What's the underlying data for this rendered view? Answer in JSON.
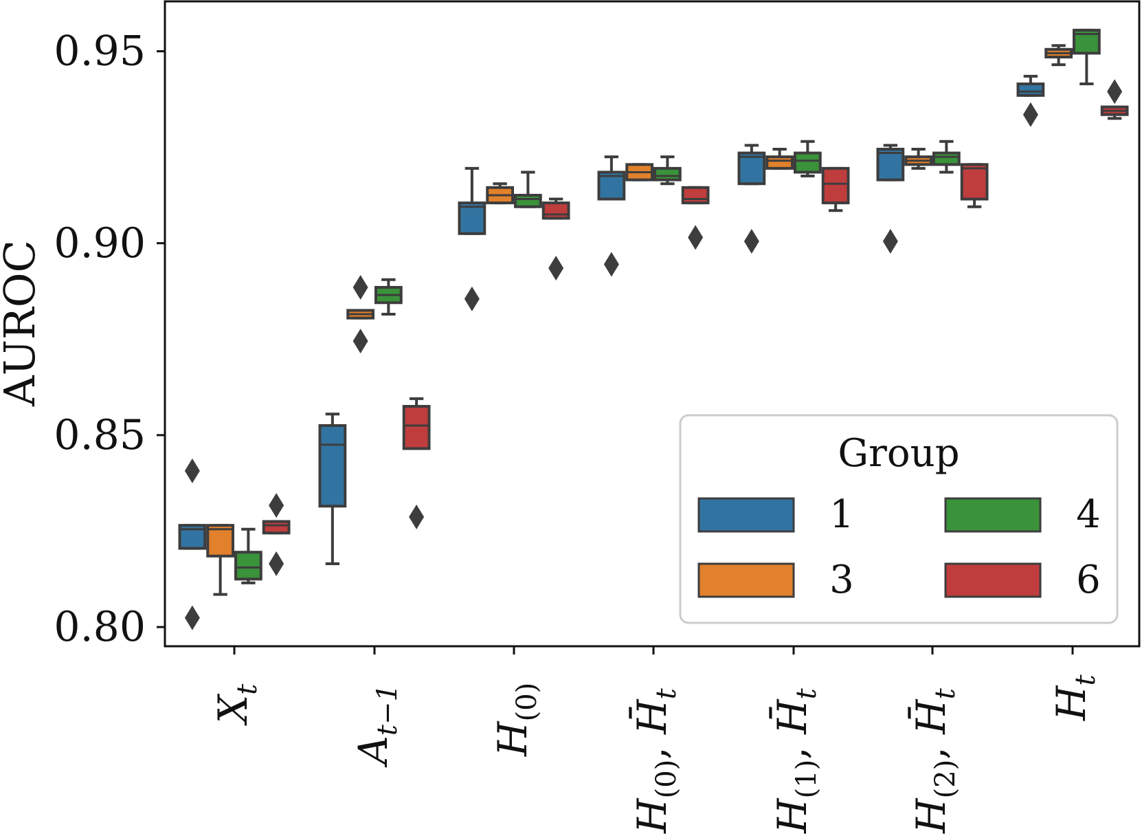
{
  "chart_data": {
    "type": "box",
    "ylabel": "AUROC",
    "ylim": [
      0.795,
      0.963
    ],
    "yticks": [
      0.8,
      0.85,
      0.9,
      0.95
    ],
    "ytick_labels": [
      "0.80",
      "0.85",
      "0.90",
      "0.95"
    ],
    "categories": [
      "X_t",
      "A_{t−1}",
      "H_(0)",
      "H_(0), H̄_t",
      "H_(1), H̄_t",
      "H_(2), H̄_t",
      "H_t"
    ],
    "grid": false,
    "legend": {
      "title": "Group",
      "position": "lower-right",
      "entries": [
        {
          "name": "1",
          "color": "#3274a1"
        },
        {
          "name": "3",
          "color": "#e1812c"
        },
        {
          "name": "4",
          "color": "#3a923a"
        },
        {
          "name": "6",
          "color": "#c03d3e"
        }
      ]
    },
    "series": [
      {
        "name": "1",
        "color": "#3274a1",
        "boxes": [
          {
            "q1": 0.8205,
            "median": 0.8255,
            "q3": 0.8265,
            "whislo": 0.8205,
            "whishi": 0.8265,
            "fliers": [
              0.8407,
              0.8024
            ]
          },
          {
            "q1": 0.8315,
            "median": 0.8475,
            "q3": 0.8525,
            "whislo": 0.8165,
            "whishi": 0.8555,
            "fliers": []
          },
          {
            "q1": 0.9025,
            "median": 0.9095,
            "q3": 0.9105,
            "whislo": 0.9025,
            "whishi": 0.9195,
            "fliers": [
              0.8855
            ]
          },
          {
            "q1": 0.9115,
            "median": 0.9175,
            "q3": 0.9185,
            "whislo": 0.9115,
            "whishi": 0.9225,
            "fliers": [
              0.8945
            ]
          },
          {
            "q1": 0.9155,
            "median": 0.9225,
            "q3": 0.9235,
            "whislo": 0.9155,
            "whishi": 0.9255,
            "fliers": [
              0.9005
            ]
          },
          {
            "q1": 0.9165,
            "median": 0.9235,
            "q3": 0.9245,
            "whislo": 0.9165,
            "whishi": 0.9255,
            "fliers": [
              0.9005
            ]
          },
          {
            "q1": 0.9385,
            "median": 0.9395,
            "q3": 0.9415,
            "whislo": 0.9385,
            "whishi": 0.9435,
            "fliers": [
              0.9335
            ]
          }
        ]
      },
      {
        "name": "3",
        "color": "#e1812c",
        "boxes": [
          {
            "q1": 0.8185,
            "median": 0.8255,
            "q3": 0.8265,
            "whislo": 0.8085,
            "whishi": 0.8265,
            "fliers": []
          },
          {
            "q1": 0.8805,
            "median": 0.8815,
            "q3": 0.8825,
            "whislo": 0.8805,
            "whishi": 0.8825,
            "fliers": [
              0.8885,
              0.8745
            ]
          },
          {
            "q1": 0.9105,
            "median": 0.9125,
            "q3": 0.9145,
            "whislo": 0.9105,
            "whishi": 0.9155,
            "fliers": []
          },
          {
            "q1": 0.9165,
            "median": 0.9185,
            "q3": 0.9205,
            "whislo": 0.9165,
            "whishi": 0.9205,
            "fliers": []
          },
          {
            "q1": 0.9195,
            "median": 0.9215,
            "q3": 0.9225,
            "whislo": 0.9195,
            "whishi": 0.9245,
            "fliers": []
          },
          {
            "q1": 0.9205,
            "median": 0.9215,
            "q3": 0.9225,
            "whislo": 0.9195,
            "whishi": 0.9245,
            "fliers": []
          },
          {
            "q1": 0.9485,
            "median": 0.9495,
            "q3": 0.9505,
            "whislo": 0.9465,
            "whishi": 0.9515,
            "fliers": []
          }
        ]
      },
      {
        "name": "4",
        "color": "#3a923a",
        "boxes": [
          {
            "q1": 0.8125,
            "median": 0.8155,
            "q3": 0.8195,
            "whislo": 0.8115,
            "whishi": 0.8255,
            "fliers": []
          },
          {
            "q1": 0.8845,
            "median": 0.8865,
            "q3": 0.8885,
            "whislo": 0.8815,
            "whishi": 0.8905,
            "fliers": []
          },
          {
            "q1": 0.9095,
            "median": 0.9115,
            "q3": 0.9125,
            "whislo": 0.9095,
            "whishi": 0.9185,
            "fliers": []
          },
          {
            "q1": 0.9165,
            "median": 0.9175,
            "q3": 0.9195,
            "whislo": 0.9155,
            "whishi": 0.9225,
            "fliers": []
          },
          {
            "q1": 0.9185,
            "median": 0.9215,
            "q3": 0.9235,
            "whislo": 0.9175,
            "whishi": 0.9265,
            "fliers": []
          },
          {
            "q1": 0.9205,
            "median": 0.9225,
            "q3": 0.9235,
            "whislo": 0.9185,
            "whishi": 0.9265,
            "fliers": []
          },
          {
            "q1": 0.9495,
            "median": 0.9545,
            "q3": 0.9555,
            "whislo": 0.9415,
            "whishi": 0.9555,
            "fliers": []
          }
        ]
      },
      {
        "name": "6",
        "color": "#c03d3e",
        "boxes": [
          {
            "q1": 0.8245,
            "median": 0.8265,
            "q3": 0.8275,
            "whislo": 0.8245,
            "whishi": 0.8275,
            "fliers": [
              0.8317,
              0.8165
            ]
          },
          {
            "q1": 0.8465,
            "median": 0.8525,
            "q3": 0.8575,
            "whislo": 0.8465,
            "whishi": 0.8595,
            "fliers": [
              0.8287
            ]
          },
          {
            "q1": 0.9065,
            "median": 0.9075,
            "q3": 0.9105,
            "whislo": 0.9065,
            "whishi": 0.9115,
            "fliers": [
              0.8935
            ]
          },
          {
            "q1": 0.9105,
            "median": 0.9115,
            "q3": 0.9145,
            "whislo": 0.9105,
            "whishi": 0.9145,
            "fliers": [
              0.9015
            ]
          },
          {
            "q1": 0.9105,
            "median": 0.9155,
            "q3": 0.9195,
            "whislo": 0.9085,
            "whishi": 0.9195,
            "fliers": []
          },
          {
            "q1": 0.9115,
            "median": 0.9195,
            "q3": 0.9205,
            "whislo": 0.9095,
            "whishi": 0.9205,
            "fliers": []
          },
          {
            "q1": 0.9335,
            "median": 0.9345,
            "q3": 0.9355,
            "whislo": 0.9325,
            "whishi": 0.9355,
            "fliers": [
              0.9395
            ]
          }
        ]
      }
    ]
  }
}
